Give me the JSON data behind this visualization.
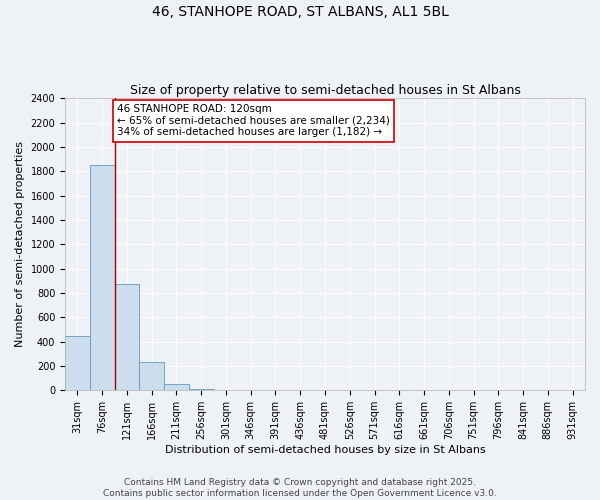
{
  "title": "46, STANHOPE ROAD, ST ALBANS, AL1 5BL",
  "subtitle": "Size of property relative to semi-detached houses in St Albans",
  "xlabel": "Distribution of semi-detached houses by size in St Albans",
  "ylabel": "Number of semi-detached properties",
  "categories": [
    "31sqm",
    "76sqm",
    "121sqm",
    "166sqm",
    "211sqm",
    "256sqm",
    "301sqm",
    "346sqm",
    "391sqm",
    "436sqm",
    "481sqm",
    "526sqm",
    "571sqm",
    "616sqm",
    "661sqm",
    "706sqm",
    "751sqm",
    "796sqm",
    "841sqm",
    "886sqm",
    "931sqm"
  ],
  "values": [
    450,
    1850,
    870,
    235,
    50,
    15,
    0,
    0,
    0,
    0,
    0,
    0,
    0,
    0,
    0,
    0,
    0,
    0,
    0,
    0,
    0
  ],
  "bar_color": "#ccdded",
  "bar_edge_color": "#6699bb",
  "vline_x_index": 2,
  "vline_color": "#aa0000",
  "annotation_text": "46 STANHOPE ROAD: 120sqm\n← 65% of semi-detached houses are smaller (2,234)\n34% of semi-detached houses are larger (1,182) →",
  "annotation_box_color": "#ffffff",
  "annotation_box_edge": "#cc0000",
  "ylim": [
    0,
    2400
  ],
  "yticks": [
    0,
    200,
    400,
    600,
    800,
    1000,
    1200,
    1400,
    1600,
    1800,
    2000,
    2200,
    2400
  ],
  "footnote1": "Contains HM Land Registry data © Crown copyright and database right 2025.",
  "footnote2": "Contains public sector information licensed under the Open Government Licence v3.0.",
  "background_color": "#eef2f7",
  "grid_color": "#ffffff",
  "title_fontsize": 10,
  "subtitle_fontsize": 9,
  "axis_label_fontsize": 8,
  "tick_fontsize": 7,
  "annotation_fontsize": 7.5,
  "footnote_fontsize": 6.5
}
